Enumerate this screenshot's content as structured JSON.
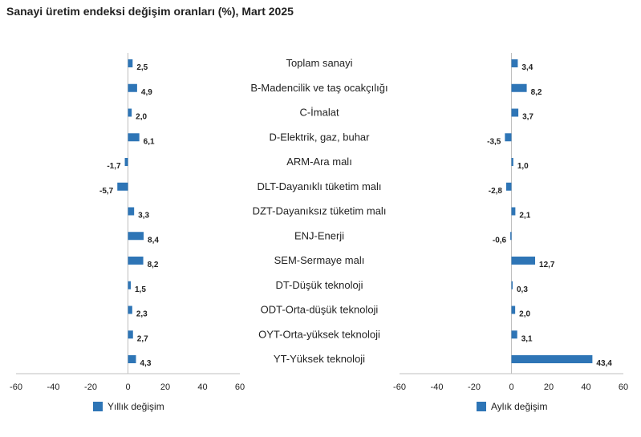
{
  "title": "Sanayi üretim endeksi değişim oranları (%), Mart 2025",
  "colors": {
    "bar": "#2e75b6",
    "axis": "#bfbfbf"
  },
  "chart_data": [
    {
      "type": "bar",
      "orientation": "horizontal",
      "categories": [
        "Toplam sanayi",
        "B-Madencilik ve taş ocakçılığı",
        "C-İmalat",
        "D-Elektrik, gaz, buhar",
        "ARM-Ara malı",
        "DLT-Dayanıklı tüketim malı",
        "DZT-Dayanıksız tüketim malı",
        "ENJ-Enerji",
        "SEM-Sermaye malı",
        "DT-Düşük teknoloji",
        "ODT-Orta-düşük teknoloji",
        "OYT-Orta-yüksek teknoloji",
        "YT-Yüksek teknoloji"
      ],
      "series": [
        {
          "name": "Yıllık değişim",
          "values": [
            2.5,
            4.9,
            2.0,
            6.1,
            -1.7,
            -5.7,
            3.3,
            8.4,
            8.2,
            1.5,
            2.3,
            2.7,
            4.3
          ],
          "labels": [
            "2,5",
            "4,9",
            "2,0",
            "6,1",
            "-1,7",
            "-5,7",
            "3,3",
            "8,4",
            "8,2",
            "1,5",
            "2,3",
            "2,7",
            "4,3"
          ]
        }
      ],
      "xlim": [
        -60,
        60
      ],
      "xticks": [
        "-60",
        "-40",
        "-20",
        "0",
        "20",
        "40",
        "60"
      ],
      "legend": "bottom-left"
    },
    {
      "type": "bar",
      "orientation": "horizontal",
      "categories": [
        "Toplam sanayi",
        "B-Madencilik ve taş ocakçılığı",
        "C-İmalat",
        "D-Elektrik, gaz, buhar",
        "ARM-Ara malı",
        "DLT-Dayanıklı tüketim malı",
        "DZT-Dayanıksız tüketim malı",
        "ENJ-Enerji",
        "SEM-Sermaye malı",
        "DT-Düşük teknoloji",
        "ODT-Orta-düşük teknoloji",
        "OYT-Orta-yüksek teknoloji",
        "YT-Yüksek teknoloji"
      ],
      "series": [
        {
          "name": "Aylık değişim",
          "values": [
            3.4,
            8.2,
            3.7,
            -3.5,
            1.0,
            -2.8,
            2.1,
            -0.6,
            12.7,
            0.3,
            2.0,
            3.1,
            43.4
          ],
          "labels": [
            "3,4",
            "8,2",
            "3,7",
            "-3,5",
            "1,0",
            "-2,8",
            "2,1",
            "-0,6",
            "12,7",
            "0,3",
            "2,0",
            "3,1",
            "43,4"
          ]
        }
      ],
      "xlim": [
        -60,
        60
      ],
      "xticks": [
        "-60",
        "-40",
        "-20",
        "0",
        "20",
        "40",
        "60"
      ],
      "legend": "bottom-left"
    }
  ]
}
